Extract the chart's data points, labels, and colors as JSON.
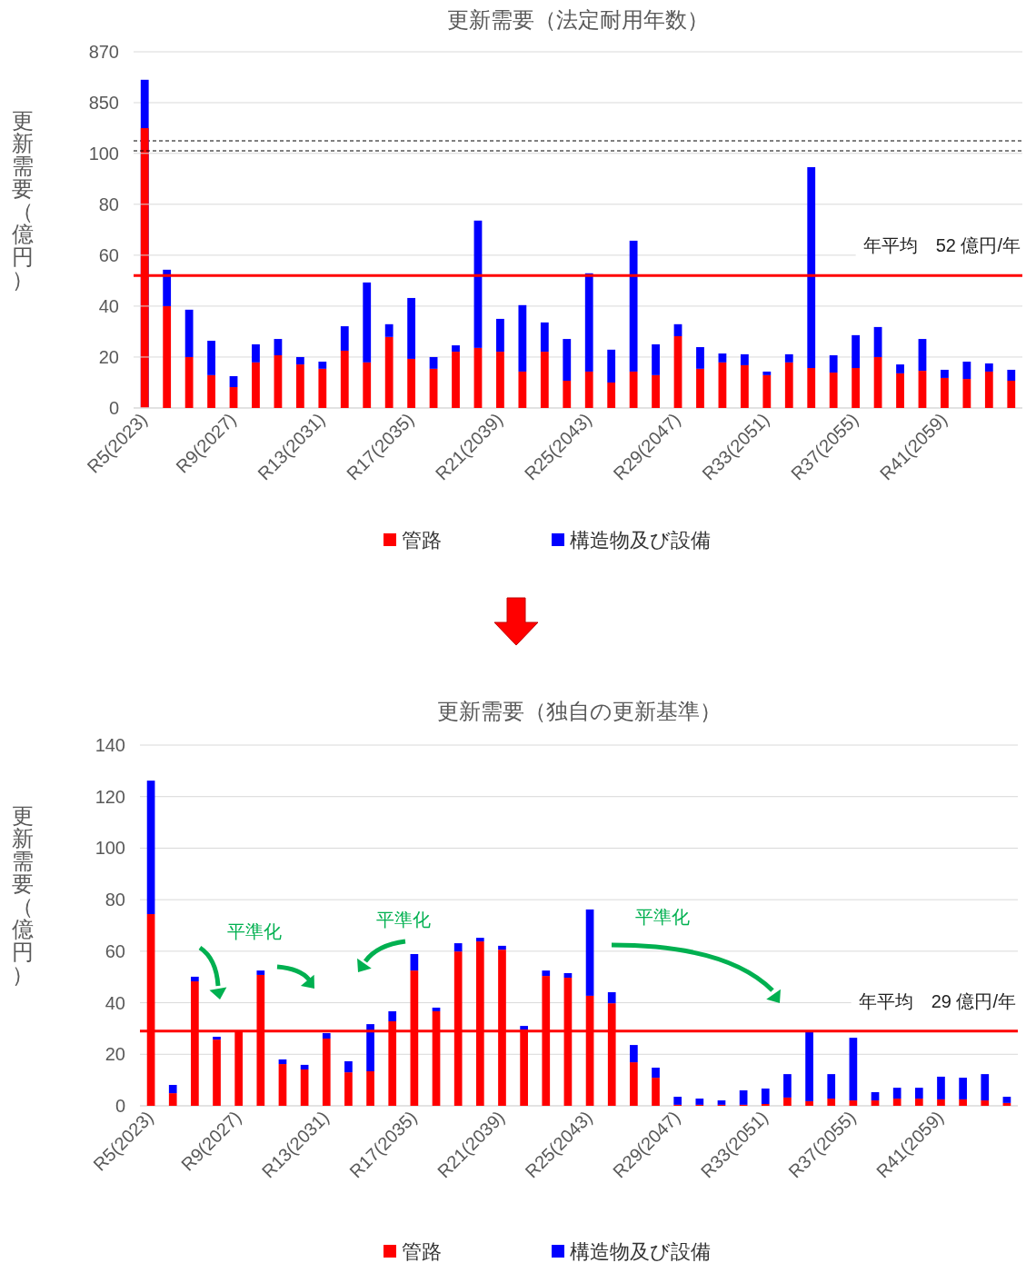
{
  "chart_data": [
    {
      "type": "bar",
      "title": "更新需要（法定耐用年数）",
      "grid": "y",
      "tick_labels": "y",
      "ylim": [
        835,
        870
      ],
      "yticks": [
        850,
        870
      ],
      "categories": [
        null,
        null,
        null,
        null,
        null,
        null,
        null,
        null,
        null,
        null,
        null,
        null,
        null,
        null,
        null,
        null,
        null,
        null,
        null,
        null,
        null,
        null,
        null,
        null,
        null,
        null,
        null,
        null,
        null,
        null,
        null,
        null,
        null,
        null,
        null,
        null,
        null,
        null,
        null,
        null
      ],
      "series": [
        {
          "color": "#0000ff",
          "values": [
            859,
            null,
            null,
            null,
            null,
            null,
            null,
            null,
            null,
            null,
            null,
            null,
            null,
            null,
            null,
            null,
            null,
            null,
            null,
            null,
            null,
            null,
            null,
            null,
            null,
            null,
            null,
            null,
            null,
            null,
            null,
            null,
            null,
            null,
            null,
            null,
            null,
            null,
            null,
            null
          ]
        },
        {
          "color": "#ff0000",
          "values": [
            840,
            null,
            null,
            null,
            null,
            null,
            null,
            null,
            null,
            null,
            null,
            null,
            null,
            null,
            null,
            null,
            null,
            null,
            null,
            null,
            null,
            null,
            null,
            null,
            null,
            null,
            null,
            null,
            null,
            null,
            null,
            null,
            null,
            null,
            null,
            null,
            null,
            null,
            null,
            null
          ]
        }
      ]
    },
    {
      "type": "bar",
      "ylabel": "更新需要（億円）",
      "stacked": true,
      "grid": "y",
      "legend": "bottom",
      "ylim": [
        0,
        101
      ],
      "yticks": [
        0,
        20,
        40,
        60,
        80,
        100
      ],
      "categories": [
        "R5(2023)",
        null,
        null,
        null,
        "R9(2027)",
        null,
        null,
        null,
        "R13(2031)",
        null,
        null,
        null,
        "R17(2035)",
        null,
        null,
        null,
        "R21(2039)",
        null,
        null,
        null,
        "R25(2043)",
        null,
        null,
        null,
        "R29(2047)",
        null,
        null,
        null,
        "R33(2051)",
        null,
        null,
        null,
        "R37(2055)",
        null,
        null,
        null,
        "R41(2059)",
        null,
        null,
        null
      ],
      "series": [
        {
          "name": "管路",
          "color": "#ff0000",
          "values": [
            null,
            40,
            20,
            12.9,
            8.2,
            17.9,
            20.7,
            17.1,
            15.4,
            22.5,
            17.9,
            27.9,
            19.3,
            15.4,
            22.1,
            23.6,
            22.1,
            14.3,
            22.1,
            10.7,
            14.3,
            10,
            14.3,
            12.9,
            28.2,
            15.4,
            17.9,
            16.8,
            12.9,
            17.9,
            15.7,
            13.9,
            15.7,
            20,
            13.6,
            14.6,
            11.8,
            11.4,
            14.3,
            10.7
          ]
        },
        {
          "name": "構造物及び設備",
          "color": "#0000ff",
          "values": [
            null,
            14.3,
            18.6,
            13.5,
            4.3,
            7.1,
            6.4,
            2.9,
            2.8,
            9.6,
            31.4,
            5,
            23.9,
            4.6,
            2.5,
            50,
            12.9,
            26.1,
            11.5,
            16.4,
            38.6,
            12.9,
            51.4,
            12.1,
            4.7,
            8.5,
            3.5,
            4.3,
            1.4,
            3.2,
            78.9,
            6.8,
            12.9,
            11.8,
            3.5,
            12.5,
            3.2,
            6.8,
            3.2,
            4.3
          ]
        }
      ],
      "ref_lines": [
        {
          "axis": "y",
          "value": 52,
          "label": "年平均　52 億円/年",
          "color": "#ff0000"
        }
      ]
    },
    {
      "type": "bar",
      "title": "更新需要（独自の更新基準）",
      "ylabel": "更新需要（億円）",
      "stacked": true,
      "grid": "y",
      "legend": "bottom",
      "ylim": [
        0,
        140
      ],
      "yticks": [
        0,
        20,
        40,
        60,
        80,
        100,
        120,
        140
      ],
      "categories": [
        "R5(2023)",
        null,
        null,
        null,
        "R9(2027)",
        null,
        null,
        null,
        "R13(2031)",
        null,
        null,
        null,
        "R17(2035)",
        null,
        null,
        null,
        "R21(2039)",
        null,
        null,
        null,
        "R25(2043)",
        null,
        null,
        null,
        "R29(2047)",
        null,
        null,
        null,
        "R33(2051)",
        null,
        null,
        null,
        "R37(2055)",
        null,
        null,
        null,
        "R41(2059)",
        null,
        null,
        null
      ],
      "series": [
        {
          "name": "管路",
          "color": "#ff0000",
          "values": [
            74.4,
            4.9,
            48.3,
            25.7,
            28.9,
            50.8,
            16.2,
            14.1,
            26.1,
            13,
            13.4,
            32.8,
            52.5,
            36.7,
            59.9,
            63.8,
            60.6,
            29.6,
            50.4,
            49.7,
            42.7,
            39.8,
            16.9,
            10.9,
            0.4,
            0.4,
            0.4,
            0.4,
            0.7,
            3.2,
            1.8,
            2.8,
            2.1,
            2.1,
            2.8,
            2.8,
            2.5,
            2.5,
            2.1,
            1.1
          ]
        },
        {
          "name": "構造物及び設備",
          "color": "#0000ff",
          "values": [
            51.8,
            3.2,
            1.8,
            1.1,
            0,
            1.7,
            1.8,
            1.8,
            2.1,
            4.3,
            18.3,
            3.9,
            6.4,
            1.4,
            3.2,
            1.4,
            1.5,
            1.4,
            2.1,
            1.8,
            33.5,
            4.3,
            6.7,
            3.9,
            3.1,
            2.4,
            1.7,
            5.6,
            6,
            9.1,
            27.1,
            9.5,
            24.3,
            3.2,
            4.2,
            4.2,
            8.8,
            8.4,
            10.2,
            2.4
          ]
        }
      ],
      "ref_lines": [
        {
          "axis": "y",
          "value": 29,
          "label": "年平均　29 億円/年",
          "color": "#ff0000"
        }
      ],
      "annotations": [
        "平準化",
        "平準化",
        "平準化"
      ]
    }
  ]
}
